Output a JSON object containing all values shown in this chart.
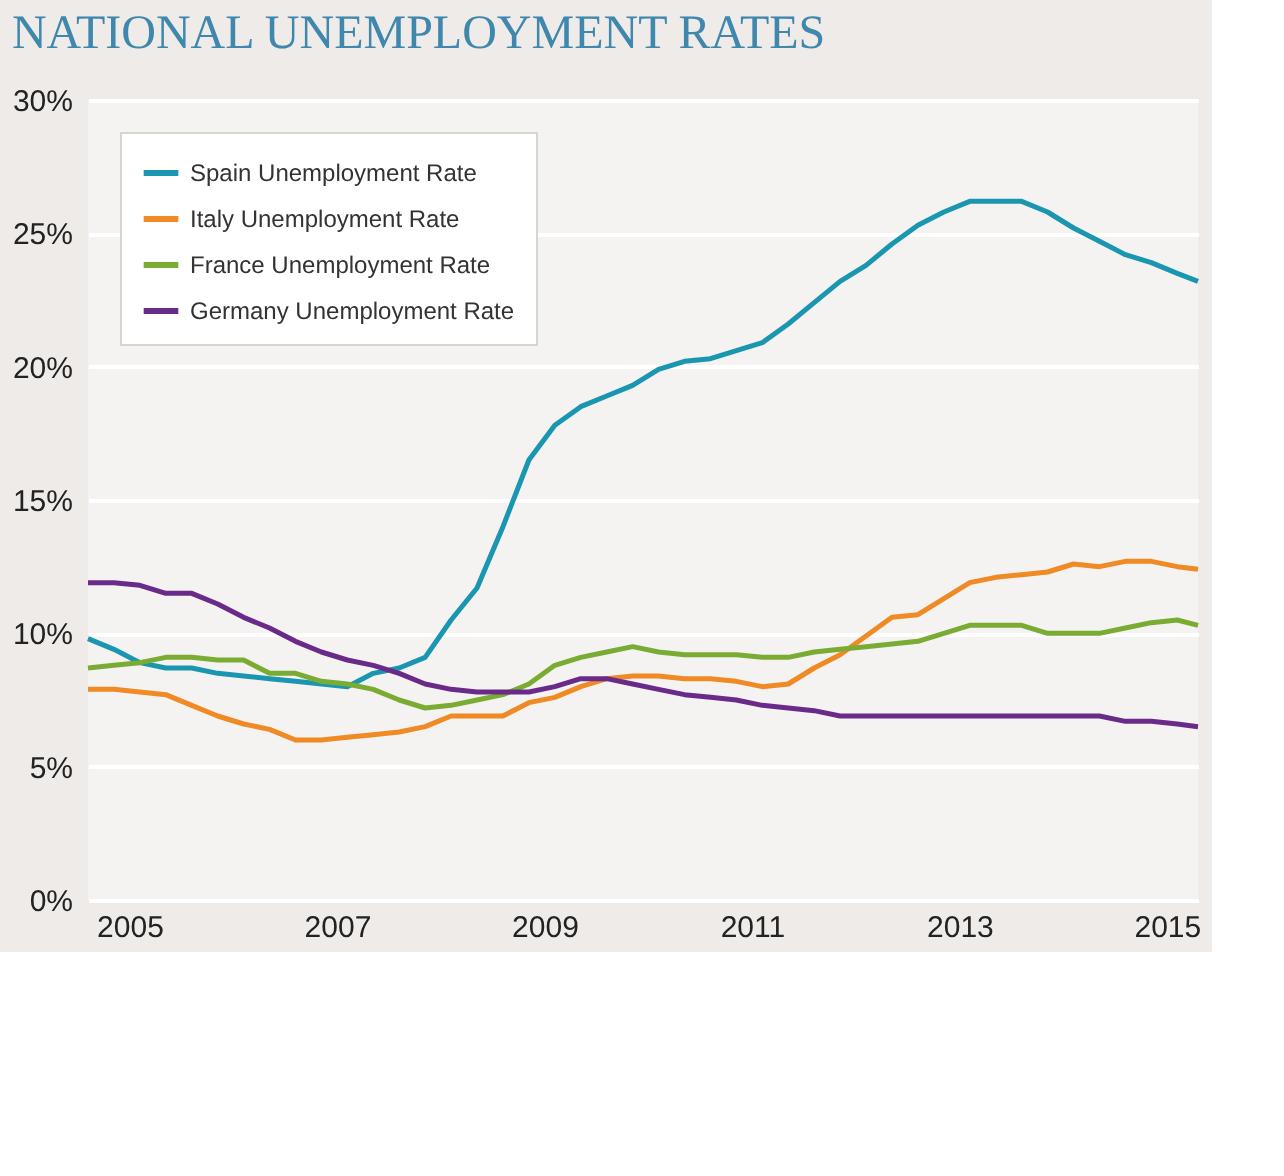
{
  "chart_data": {
    "type": "line",
    "title": "NATIONAL UNEMPLOYMENT RATES",
    "x": [
      2004.6,
      2004.85,
      2005.1,
      2005.35,
      2005.6,
      2005.85,
      2006.1,
      2006.35,
      2006.6,
      2006.85,
      2007.1,
      2007.35,
      2007.6,
      2007.85,
      2008.1,
      2008.35,
      2008.6,
      2008.85,
      2009.1,
      2009.35,
      2009.6,
      2009.85,
      2010.1,
      2010.35,
      2010.6,
      2010.85,
      2011.1,
      2011.35,
      2011.6,
      2011.85,
      2012.1,
      2012.35,
      2012.6,
      2012.85,
      2013.1,
      2013.35,
      2013.6,
      2013.85,
      2014.1,
      2014.35,
      2014.6,
      2014.85,
      2015.1,
      2015.3
    ],
    "series": [
      {
        "name": "Spain Unemployment Rate",
        "color": "#1a96b0",
        "values": [
          9.8,
          9.4,
          8.9,
          8.7,
          8.7,
          8.5,
          8.4,
          8.3,
          8.2,
          8.1,
          8.0,
          8.5,
          8.7,
          9.1,
          10.5,
          11.7,
          14.0,
          16.5,
          17.8,
          18.5,
          18.9,
          19.3,
          19.9,
          20.2,
          20.3,
          20.6,
          20.9,
          21.6,
          22.4,
          23.2,
          23.8,
          24.6,
          25.3,
          25.8,
          26.2,
          26.2,
          26.2,
          25.8,
          25.2,
          24.7,
          24.2,
          23.9,
          23.5,
          23.2
        ]
      },
      {
        "name": "Italy Unemployment Rate",
        "color": "#f08a24",
        "values": [
          7.9,
          7.9,
          7.8,
          7.7,
          7.3,
          6.9,
          6.6,
          6.4,
          6.0,
          6.0,
          6.1,
          6.2,
          6.3,
          6.5,
          6.9,
          6.9,
          6.9,
          7.4,
          7.6,
          8.0,
          8.3,
          8.4,
          8.4,
          8.3,
          8.3,
          8.2,
          8.0,
          8.1,
          8.7,
          9.2,
          9.9,
          10.6,
          10.7,
          11.3,
          11.9,
          12.1,
          12.2,
          12.3,
          12.6,
          12.5,
          12.7,
          12.7,
          12.5,
          12.4
        ]
      },
      {
        "name": "France Unemployment Rate",
        "color": "#7aab32",
        "values": [
          8.7,
          8.8,
          8.9,
          9.1,
          9.1,
          9.0,
          9.0,
          8.5,
          8.5,
          8.2,
          8.1,
          7.9,
          7.5,
          7.2,
          7.3,
          7.5,
          7.7,
          8.1,
          8.8,
          9.1,
          9.3,
          9.5,
          9.3,
          9.2,
          9.2,
          9.2,
          9.1,
          9.1,
          9.3,
          9.4,
          9.5,
          9.6,
          9.7,
          10.0,
          10.3,
          10.3,
          10.3,
          10.0,
          10.0,
          10.0,
          10.2,
          10.4,
          10.5,
          10.3
        ]
      },
      {
        "name": "Germany Unemployment Rate",
        "color": "#6a2a8a",
        "values": [
          11.9,
          11.9,
          11.8,
          11.5,
          11.5,
          11.1,
          10.6,
          10.2,
          9.7,
          9.3,
          9.0,
          8.8,
          8.5,
          8.1,
          7.9,
          7.8,
          7.8,
          7.8,
          8.0,
          8.3,
          8.3,
          8.1,
          7.9,
          7.7,
          7.6,
          7.5,
          7.3,
          7.2,
          7.1,
          6.9,
          6.9,
          6.9,
          6.9,
          6.9,
          6.9,
          6.9,
          6.9,
          6.9,
          6.9,
          6.9,
          6.7,
          6.7,
          6.6,
          6.5
        ]
      }
    ],
    "xlim": [
      2004.6,
      2015.3
    ],
    "xticks": [
      2005,
      2007,
      2009,
      2011,
      2013,
      2015
    ],
    "ylim": [
      0,
      30
    ],
    "yticks": [
      {
        "value": 0,
        "label": "0%"
      },
      {
        "value": 5,
        "label": "5%"
      },
      {
        "value": 10,
        "label": "10%"
      },
      {
        "value": 15,
        "label": "15%"
      },
      {
        "value": 20,
        "label": "20%"
      },
      {
        "value": 25,
        "label": "25%"
      },
      {
        "value": 30,
        "label": "30%"
      }
    ],
    "grid": "y",
    "legend": "top left",
    "marker": "none",
    "line_style": "solid"
  }
}
